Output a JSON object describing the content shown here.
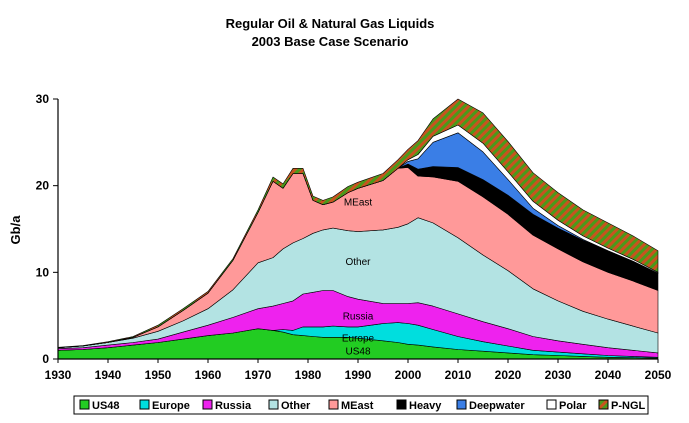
{
  "chart_data": {
    "type": "area",
    "stacked": true,
    "title": "Regular Oil & Natural Gas Liquids",
    "subtitle": "2003 Base Case Scenario",
    "xlabel": "",
    "ylabel": "Gb/a",
    "xlim": [
      1930,
      2050
    ],
    "ylim": [
      0,
      30
    ],
    "x_ticks": [
      "1930",
      "1940",
      "1950",
      "1960",
      "1970",
      "1980",
      "1990",
      "2000",
      "2010",
      "2020",
      "2030",
      "2040",
      "2050"
    ],
    "y_ticks": [
      "0",
      "10",
      "20",
      "30"
    ],
    "grid": false,
    "legend_position": "bottom",
    "x": [
      1930,
      1935,
      1940,
      1945,
      1950,
      1955,
      1960,
      1965,
      1970,
      1973,
      1975,
      1977,
      1979,
      1981,
      1983,
      1985,
      1988,
      1990,
      1995,
      1998,
      2000,
      2002,
      2005,
      2010,
      2015,
      2020,
      2025,
      2030,
      2035,
      2040,
      2045,
      2050
    ],
    "series": [
      {
        "name": "US48",
        "color": "#22cc22",
        "values": [
          1.0,
          1.1,
          1.3,
          1.6,
          1.9,
          2.3,
          2.7,
          3.0,
          3.5,
          3.3,
          3.1,
          2.8,
          2.7,
          2.6,
          2.5,
          2.5,
          2.5,
          2.4,
          2.1,
          1.9,
          1.7,
          1.6,
          1.4,
          1.1,
          0.9,
          0.7,
          0.5,
          0.4,
          0.3,
          0.2,
          0.15,
          0.1
        ]
      },
      {
        "name": "Europe",
        "color": "#00dede",
        "values": [
          0,
          0,
          0,
          0,
          0,
          0,
          0,
          0,
          0,
          0,
          0.3,
          0.5,
          1.0,
          1.1,
          1.2,
          1.3,
          1.2,
          1.3,
          2.0,
          2.3,
          2.4,
          2.3,
          2.0,
          1.5,
          1.1,
          0.8,
          0.5,
          0.4,
          0.3,
          0.2,
          0.15,
          0.1
        ]
      },
      {
        "name": "Russia",
        "color": "#ee22ee",
        "values": [
          0.2,
          0.2,
          0.3,
          0.3,
          0.4,
          0.8,
          1.2,
          1.8,
          2.3,
          2.8,
          3.0,
          3.4,
          3.8,
          4.0,
          4.2,
          4.1,
          3.5,
          3.2,
          2.3,
          2.2,
          2.3,
          2.6,
          2.7,
          2.6,
          2.3,
          2.0,
          1.6,
          1.3,
          1.1,
          0.9,
          0.7,
          0.5
        ]
      },
      {
        "name": "Other",
        "color": "#b3e3e3",
        "values": [
          0.1,
          0.2,
          0.3,
          0.5,
          0.9,
          1.3,
          1.9,
          3.2,
          5.3,
          5.6,
          6.3,
          6.7,
          6.4,
          6.8,
          7.0,
          7.2,
          7.6,
          7.8,
          8.5,
          8.8,
          9.2,
          9.8,
          9.6,
          8.8,
          7.7,
          6.7,
          5.5,
          4.6,
          3.8,
          3.3,
          2.8,
          2.3
        ]
      },
      {
        "name": "MEast",
        "color": "#ff9999",
        "values": [
          0,
          0,
          0,
          0.1,
          0.5,
          1.2,
          1.8,
          3.4,
          5.8,
          8.8,
          7.0,
          8.0,
          7.5,
          3.8,
          2.9,
          3.0,
          4.4,
          5.0,
          5.7,
          6.8,
          6.5,
          4.8,
          5.3,
          6.5,
          6.7,
          6.5,
          6.2,
          6.0,
          5.7,
          5.4,
          5.2,
          4.9
        ]
      },
      {
        "name": "Heavy",
        "color": "#000000",
        "values": [
          0,
          0,
          0,
          0,
          0,
          0,
          0,
          0,
          0,
          0,
          0,
          0,
          0,
          0,
          0,
          0,
          0,
          0,
          0,
          0,
          0.4,
          0.8,
          1.2,
          1.6,
          2.0,
          2.2,
          2.4,
          2.4,
          2.5,
          2.5,
          2.3,
          2.0
        ]
      },
      {
        "name": "Deepwater",
        "color": "#3a7ee6",
        "values": [
          0,
          0,
          0,
          0,
          0,
          0,
          0,
          0,
          0,
          0,
          0,
          0,
          0,
          0,
          0,
          0,
          0,
          0,
          0,
          0,
          0.3,
          1.2,
          2.8,
          4.0,
          3.2,
          1.8,
          0.7,
          0.3,
          0.1,
          0,
          0,
          0
        ]
      },
      {
        "name": "Polar",
        "color": "#ffffff",
        "values": [
          0,
          0,
          0,
          0,
          0,
          0,
          0,
          0,
          0,
          0,
          0,
          0,
          0,
          0,
          0,
          0,
          0,
          0,
          0,
          0,
          0.2,
          0.5,
          0.7,
          0.9,
          1.0,
          0.9,
          0.8,
          0.6,
          0.4,
          0.3,
          0.2,
          0.1
        ]
      },
      {
        "name": "P-NGL",
        "color": "#b85a2a",
        "values": [
          0.05,
          0.05,
          0.1,
          0.1,
          0.2,
          0.2,
          0.2,
          0.2,
          0.3,
          0.5,
          0.5,
          0.6,
          0.6,
          0.5,
          0.5,
          0.6,
          0.7,
          0.7,
          0.8,
          1.0,
          1.2,
          1.6,
          2.0,
          3.0,
          3.5,
          3.5,
          3.3,
          3.2,
          3.0,
          2.9,
          2.7,
          2.5
        ]
      }
    ],
    "annotations": [
      {
        "text": "MEast",
        "x": 1990,
        "y": 18.2
      },
      {
        "text": "Other",
        "x": 1990,
        "y": 11.3
      },
      {
        "text": "Russia",
        "x": 1990,
        "y": 5.0
      },
      {
        "text": "Europe",
        "x": 1990,
        "y": 2.5
      },
      {
        "text": "US48",
        "x": 1990,
        "y": 1.0
      }
    ]
  }
}
